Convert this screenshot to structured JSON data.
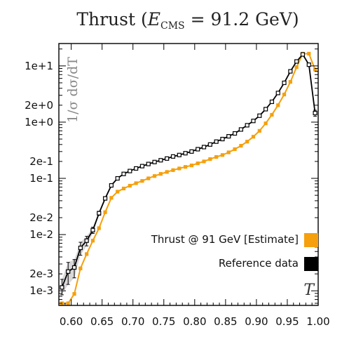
{
  "chart_data": {
    "type": "line",
    "title": "Thrust  (E_CMS = 91.2  GeV)",
    "title_parts": {
      "main": "Thrust  (",
      "var": "E",
      "sub": "CMS",
      "rest": " = 91.2  GeV)"
    },
    "xlabel": "T",
    "ylabel": "1/σ  dσ/dT",
    "xlim": [
      0.58,
      1.0
    ],
    "ylim": [
      0.00055,
      25
    ],
    "yscale": "log",
    "grid": false,
    "legend_position": "bottom-right",
    "x_ticks": [
      "0.60",
      "0.65",
      "0.70",
      "0.75",
      "0.80",
      "0.85",
      "0.90",
      "0.95",
      "1.00"
    ],
    "x_tick_values": [
      0.6,
      0.65,
      0.7,
      0.75,
      0.8,
      0.85,
      0.9,
      0.95,
      1.0
    ],
    "y_ticks": [
      "1e-3",
      "2e-3",
      "1e-2",
      "2e-2",
      "1e-1",
      "2e-1",
      "1e+0",
      "2e+0",
      "1e+1"
    ],
    "y_tick_values": [
      0.001,
      0.002,
      0.01,
      0.02,
      0.1,
      0.2,
      1,
      2,
      10
    ],
    "series": [
      {
        "name": "Thrust @ 91 GeV [Estimate]",
        "color": "#f5a00c",
        "x": [
          0.585,
          0.595,
          0.605,
          0.615,
          0.625,
          0.635,
          0.645,
          0.655,
          0.665,
          0.675,
          0.685,
          0.695,
          0.705,
          0.715,
          0.725,
          0.735,
          0.745,
          0.755,
          0.765,
          0.775,
          0.785,
          0.795,
          0.805,
          0.815,
          0.825,
          0.835,
          0.845,
          0.855,
          0.865,
          0.875,
          0.885,
          0.895,
          0.905,
          0.915,
          0.925,
          0.935,
          0.945,
          0.955,
          0.965,
          0.975,
          0.985,
          0.995
        ],
        "y": [
          0.0006,
          0.0006,
          0.00088,
          0.0025,
          0.0045,
          0.0078,
          0.013,
          0.025,
          0.045,
          0.058,
          0.066,
          0.074,
          0.082,
          0.09,
          0.1,
          0.11,
          0.12,
          0.13,
          0.14,
          0.15,
          0.16,
          0.17,
          0.185,
          0.2,
          0.22,
          0.24,
          0.26,
          0.29,
          0.33,
          0.38,
          0.45,
          0.55,
          0.7,
          0.95,
          1.35,
          2.0,
          3.1,
          5.2,
          9.5,
          16.5,
          16.5,
          8.6
        ]
      },
      {
        "name": "Reference data",
        "color": "#000000",
        "x": [
          0.585,
          0.595,
          0.605,
          0.615,
          0.625,
          0.635,
          0.645,
          0.655,
          0.665,
          0.675,
          0.685,
          0.695,
          0.705,
          0.715,
          0.725,
          0.735,
          0.745,
          0.755,
          0.765,
          0.775,
          0.785,
          0.795,
          0.805,
          0.815,
          0.825,
          0.835,
          0.845,
          0.855,
          0.865,
          0.875,
          0.885,
          0.895,
          0.905,
          0.915,
          0.925,
          0.935,
          0.945,
          0.955,
          0.965,
          0.975,
          0.985,
          0.995
        ],
        "y": [
          0.00115,
          0.0022,
          0.0026,
          0.0058,
          0.0078,
          0.012,
          0.024,
          0.044,
          0.075,
          0.1,
          0.12,
          0.135,
          0.15,
          0.165,
          0.18,
          0.195,
          0.21,
          0.225,
          0.245,
          0.26,
          0.28,
          0.3,
          0.33,
          0.36,
          0.4,
          0.45,
          0.5,
          0.56,
          0.63,
          0.74,
          0.88,
          1.05,
          1.3,
          1.7,
          2.3,
          3.3,
          5.0,
          8.0,
          12.0,
          16.0,
          10.5,
          1.45
        ],
        "err_low": [
          0.0003,
          0.0009,
          0.0009,
          0.0015,
          0.0015,
          0.0015,
          0.002,
          0.003,
          0.004,
          0.003,
          0.002,
          0.002,
          0.002,
          0.002,
          0.002,
          0.002,
          0.002,
          0.002,
          0.003,
          0.003,
          0.003,
          0.003,
          0.004,
          0.004,
          0.005,
          0.005,
          0.006,
          0.006,
          0.007,
          0.008,
          0.01,
          0.012,
          0.015,
          0.02,
          0.03,
          0.04,
          0.06,
          0.1,
          0.15,
          0.3,
          0.3,
          0.18
        ],
        "err_high": [
          0.00045,
          0.001,
          0.001,
          0.0015,
          0.0015,
          0.0015,
          0.002,
          0.003,
          0.004,
          0.003,
          0.002,
          0.002,
          0.002,
          0.002,
          0.002,
          0.002,
          0.002,
          0.002,
          0.003,
          0.003,
          0.003,
          0.003,
          0.004,
          0.004,
          0.005,
          0.005,
          0.006,
          0.006,
          0.007,
          0.008,
          0.01,
          0.012,
          0.015,
          0.02,
          0.03,
          0.04,
          0.06,
          0.1,
          0.15,
          0.3,
          0.3,
          0.18
        ]
      }
    ],
    "band_color": "#b8b8b8"
  }
}
